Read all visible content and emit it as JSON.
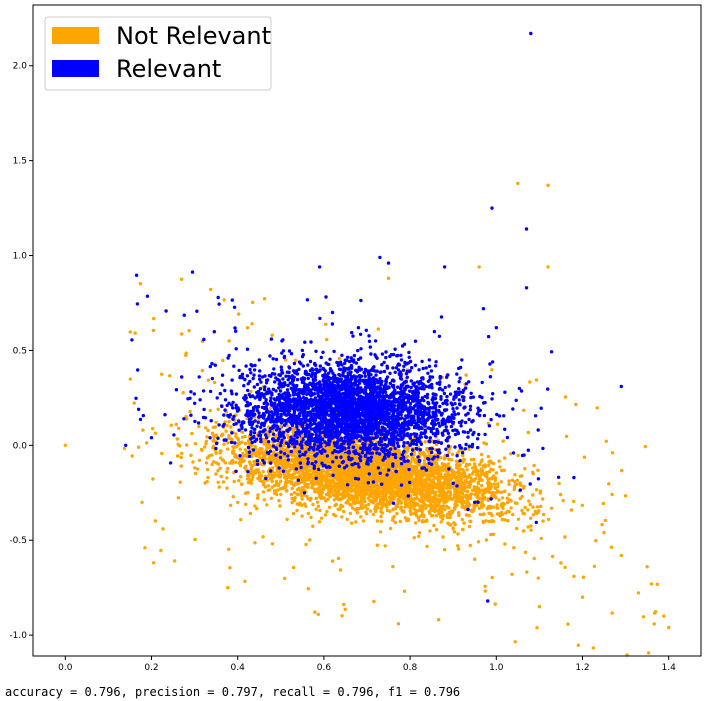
{
  "chart_data": {
    "type": "scatter",
    "title": "",
    "xlabel": "",
    "ylabel": "",
    "xlim": [
      -0.075,
      1.475
    ],
    "ylim": [
      -1.11,
      2.32
    ],
    "x_ticks": [
      0.0,
      0.2,
      0.4,
      0.6,
      0.8,
      1.0,
      1.2,
      1.4
    ],
    "y_ticks": [
      -1.0,
      -0.5,
      0.0,
      0.5,
      1.0,
      1.5,
      2.0
    ],
    "x_tick_labels": [
      "0.0",
      "0.2",
      "0.4",
      "0.6",
      "0.8",
      "1.0",
      "1.2",
      "1.4"
    ],
    "y_tick_labels": [
      "-1.0",
      "-0.5",
      "0.0",
      "0.5",
      "1.0",
      "1.5",
      "2.0"
    ],
    "grid": false,
    "legend_position": "top-left",
    "series": [
      {
        "name": "Not Relevant",
        "color": "#FFA500",
        "sample_points": [
          [
            0.0,
            0.0
          ],
          [
            0.17,
            -0.01
          ],
          [
            0.18,
            0.08
          ],
          [
            1.08,
            2.17
          ],
          [
            1.05,
            1.38
          ],
          [
            1.12,
            1.37
          ],
          [
            1.12,
            0.94
          ],
          [
            1.4,
            -0.96
          ],
          [
            1.36,
            -0.73
          ],
          [
            1.35,
            -0.64
          ],
          [
            1.29,
            -0.58
          ],
          [
            1.25,
            -0.46
          ],
          [
            1.2,
            -0.8
          ],
          [
            1.18,
            -0.69
          ],
          [
            1.15,
            -0.62
          ],
          [
            1.1,
            -0.85
          ],
          [
            1.02,
            -0.52
          ],
          [
            0.95,
            -0.6
          ],
          [
            0.9,
            -0.44
          ],
          [
            0.85,
            -0.37
          ],
          [
            0.8,
            -0.3
          ],
          [
            0.75,
            -0.2
          ],
          [
            0.7,
            -0.12
          ],
          [
            0.65,
            -0.05
          ],
          [
            0.6,
            0.0
          ],
          [
            0.55,
            0.05
          ],
          [
            0.5,
            0.1
          ],
          [
            0.45,
            -0.05
          ],
          [
            0.44,
            -0.32
          ],
          [
            0.38,
            0.55
          ],
          [
            0.48,
            0.58
          ],
          [
            0.57,
            -0.38
          ],
          [
            0.75,
            0.88
          ],
          [
            0.96,
            0.94
          ],
          [
            0.93,
            0.37
          ],
          [
            1.03,
            -0.35
          ],
          [
            1.06,
            -0.27
          ],
          [
            0.98,
            -0.2
          ],
          [
            0.88,
            -0.55
          ],
          [
            0.82,
            -0.48
          ]
        ],
        "n_points_approx": 4200
      },
      {
        "name": "Relevant",
        "color": "#0000FF",
        "sample_points": [
          [
            1.08,
            2.17
          ],
          [
            0.99,
            1.25
          ],
          [
            1.07,
            1.14
          ],
          [
            0.73,
            0.99
          ],
          [
            0.59,
            0.94
          ],
          [
            0.88,
            0.94
          ],
          [
            0.75,
            0.96
          ],
          [
            1.07,
            0.83
          ],
          [
            1.29,
            0.31
          ],
          [
            0.98,
            -0.82
          ],
          [
            1.18,
            -0.17
          ],
          [
            1.04,
            -0.04
          ],
          [
            0.2,
            0.04
          ],
          [
            0.14,
            0.0
          ],
          [
            0.17,
            0.19
          ],
          [
            0.27,
            0.36
          ],
          [
            0.34,
            0.43
          ],
          [
            0.45,
            0.45
          ],
          [
            0.55,
            0.5
          ],
          [
            0.6,
            0.4
          ],
          [
            0.65,
            0.3
          ],
          [
            0.7,
            0.2
          ],
          [
            0.75,
            0.1
          ],
          [
            0.8,
            0.0
          ],
          [
            0.85,
            -0.1
          ],
          [
            0.9,
            -0.2
          ],
          [
            0.95,
            -0.3
          ],
          [
            0.5,
            0.2
          ],
          [
            0.55,
            0.1
          ],
          [
            0.62,
            0.7
          ],
          [
            0.68,
            0.62
          ],
          [
            0.72,
            0.55
          ],
          [
            0.78,
            0.45
          ],
          [
            0.83,
            0.35
          ],
          [
            0.42,
            0.25
          ],
          [
            0.38,
            0.15
          ],
          [
            0.92,
            0.45
          ],
          [
            1.02,
            0.28
          ],
          [
            0.97,
            0.72
          ],
          [
            1.0,
            0.62
          ]
        ],
        "n_points_approx": 3400
      }
    ]
  },
  "legend": {
    "items": [
      {
        "label": "Not Relevant",
        "color": "#FFA500"
      },
      {
        "label": "Relevant",
        "color": "#0000FF"
      }
    ]
  },
  "footer": {
    "metrics_text": "accuracy = 0.796, precision = 0.797, recall = 0.796, f1 = 0.796"
  }
}
